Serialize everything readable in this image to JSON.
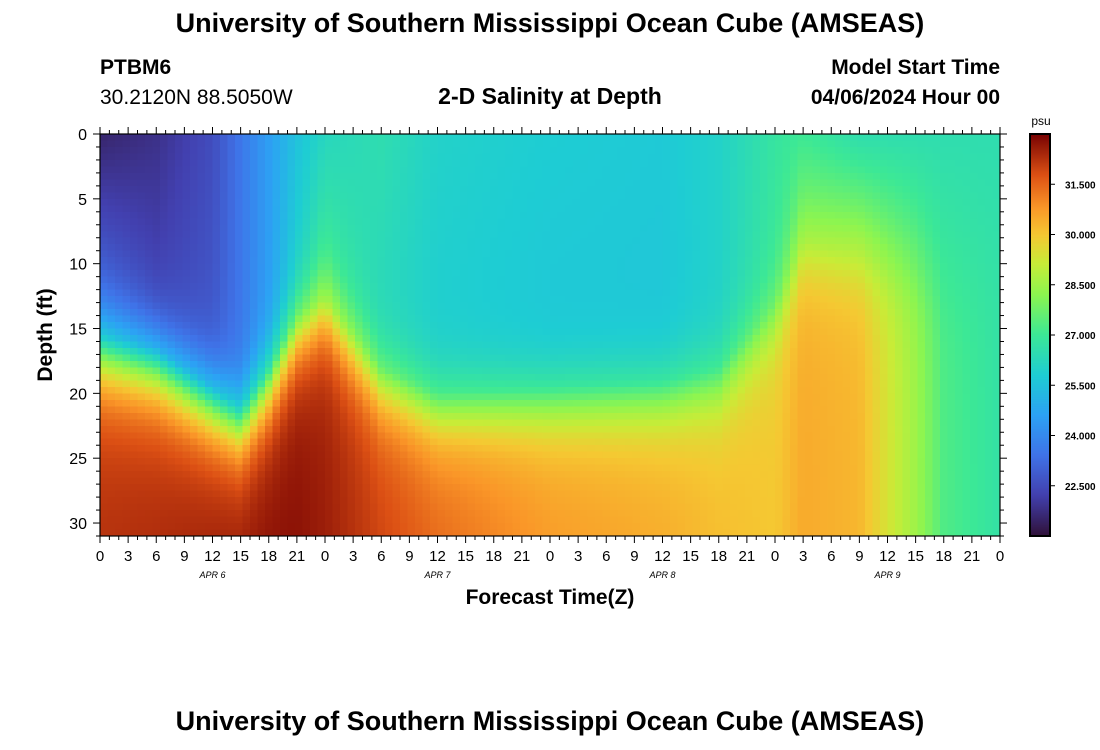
{
  "header": {
    "title": "University of Southern Mississippi Ocean Cube (AMSEAS)",
    "title_repeat": "University of Southern Mississippi Ocean Cube (AMSEAS)",
    "station_id": "PTBM6",
    "station_coords": "30.2120N  88.5050W",
    "chart_title": "2-D Salinity at Depth",
    "model_start_label": "Model Start Time",
    "model_start_value": "04/06/2024 Hour 00"
  },
  "chart_data": {
    "type": "heatmap",
    "title": "2-D Salinity at Depth",
    "xlabel": "Forecast Time(Z)",
    "ylabel": "Depth (ft)",
    "x_range_hours": [
      0,
      96
    ],
    "y_range_ft": [
      0,
      31
    ],
    "y_ticks": [
      0,
      5,
      10,
      15,
      20,
      25,
      30
    ],
    "x_tick_labels": [
      "0",
      "3",
      "6",
      "9",
      "12",
      "15",
      "18",
      "21",
      "0",
      "3",
      "6",
      "9",
      "12",
      "15",
      "18",
      "21",
      "0",
      "3",
      "6",
      "9",
      "12",
      "15",
      "18",
      "21",
      "0",
      "3",
      "6",
      "9",
      "12",
      "15",
      "18",
      "21",
      "0"
    ],
    "day_labels": [
      "APR 6",
      "APR 7",
      "APR 8",
      "APR 9"
    ],
    "colorbar": {
      "unit": "psu",
      "tick_values": [
        31.5,
        30.0,
        28.5,
        27.0,
        25.5,
        24.0,
        22.5
      ],
      "tick_labels": [
        "31.500",
        "30.000",
        "28.500",
        "27.000",
        "25.500",
        "24.000",
        "22.500"
      ],
      "range": [
        21.0,
        33.0
      ]
    },
    "field_description": "salinity (psu) vs forecast hour and depth",
    "control_points": [
      {
        "hour": 0,
        "halocline_ft": 15.5,
        "surface_psu": 21.5,
        "mid_psu": 23.5,
        "bottom_psu": 32.3
      },
      {
        "hour": 6,
        "halocline_ft": 16.5,
        "surface_psu": 21.8,
        "mid_psu": 22.5,
        "bottom_psu": 32.4
      },
      {
        "hour": 12,
        "halocline_ft": 19.5,
        "surface_psu": 22.5,
        "mid_psu": 22.8,
        "bottom_psu": 32.6
      },
      {
        "hour": 15,
        "halocline_ft": 21.0,
        "surface_psu": 23.5,
        "mid_psu": 23.5,
        "bottom_psu": 32.7
      },
      {
        "hour": 18,
        "halocline_ft": 18.0,
        "surface_psu": 24.5,
        "mid_psu": 24.5,
        "bottom_psu": 32.8
      },
      {
        "hour": 21,
        "halocline_ft": 14.0,
        "surface_psu": 25.5,
        "mid_psu": 26.0,
        "bottom_psu": 32.8
      },
      {
        "hour": 24,
        "halocline_ft": 12.5,
        "surface_psu": 26.2,
        "mid_psu": 27.2,
        "bottom_psu": 32.6
      },
      {
        "hour": 30,
        "halocline_ft": 18.0,
        "surface_psu": 26.5,
        "mid_psu": 26.2,
        "bottom_psu": 32.0
      },
      {
        "hour": 36,
        "halocline_ft": 20.0,
        "surface_psu": 26.0,
        "mid_psu": 25.8,
        "bottom_psu": 31.5
      },
      {
        "hour": 48,
        "halocline_ft": 19.5,
        "surface_psu": 25.8,
        "mid_psu": 25.6,
        "bottom_psu": 30.8
      },
      {
        "hour": 60,
        "halocline_ft": 19.0,
        "surface_psu": 25.7,
        "mid_psu": 25.6,
        "bottom_psu": 30.5
      },
      {
        "hour": 66,
        "halocline_ft": 18.0,
        "surface_psu": 26.0,
        "mid_psu": 26.0,
        "bottom_psu": 30.2
      },
      {
        "hour": 72,
        "halocline_ft": 13.0,
        "surface_psu": 26.8,
        "mid_psu": 27.0,
        "bottom_psu": 30.0
      },
      {
        "hour": 75,
        "halocline_ft": 8.0,
        "surface_psu": 27.0,
        "mid_psu": 28.0,
        "bottom_psu": 30.5
      },
      {
        "hour": 81,
        "halocline_ft": 9.0,
        "surface_psu": 26.5,
        "mid_psu": 28.3,
        "bottom_psu": 30.3
      },
      {
        "hour": 87,
        "halocline_ft": 10.0,
        "surface_psu": 26.5,
        "mid_psu": 27.5,
        "bottom_psu": 28.5
      },
      {
        "hour": 90,
        "halocline_ft": 12.0,
        "surface_psu": 26.5,
        "mid_psu": 27.0,
        "bottom_psu": 27.3
      },
      {
        "hour": 96,
        "halocline_ft": 14.0,
        "surface_psu": 26.5,
        "mid_psu": 26.7,
        "bottom_psu": 26.7
      }
    ]
  }
}
